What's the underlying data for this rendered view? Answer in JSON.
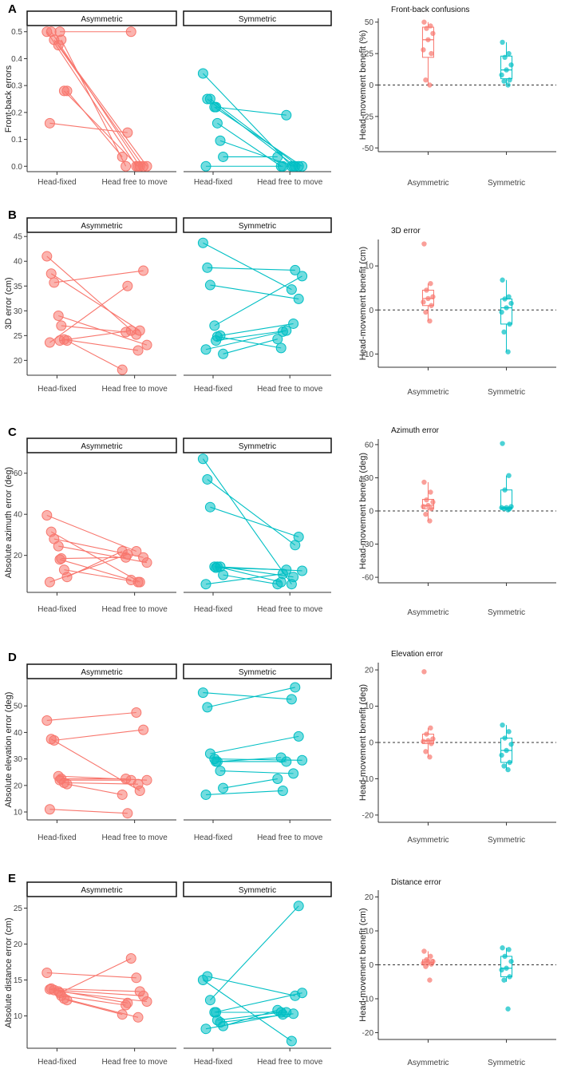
{
  "figure": {
    "colors": {
      "asym": "#F8766D",
      "sym": "#00BFC4"
    },
    "facets": [
      "Asymmetric",
      "Symmetric"
    ],
    "conditions": [
      "Head-fixed",
      "Head free to move"
    ]
  },
  "chart_data": [
    {
      "type": "line",
      "panel": "A",
      "ylabel": "Front-back errors",
      "ylim": [
        -0.02,
        0.52
      ],
      "yticks": [
        "0.0",
        "0.1",
        "0.2",
        "0.3",
        "0.4",
        "0.5"
      ],
      "yticks_values": [
        0,
        0.1,
        0.2,
        0.3,
        0.4,
        0.5
      ],
      "series": [
        {
          "name": "Asymmetric",
          "pairs": [
            [
              0.5,
              0.0
            ],
            [
              0.5,
              0.0
            ],
            [
              0.47,
              0.0
            ],
            [
              0.45,
              0.0
            ],
            [
              0.47,
              0.0
            ],
            [
              0.28,
              0.0
            ],
            [
              0.28,
              0.035
            ],
            [
              0.16,
              0.125
            ],
            [
              0.5,
              0.5
            ]
          ]
        },
        {
          "name": "Symmetric",
          "pairs": [
            [
              0.345,
              0.0
            ],
            [
              0.25,
              0.0
            ],
            [
              0.25,
              0.0
            ],
            [
              0.22,
              0.0
            ],
            [
              0.16,
              0.0
            ],
            [
              0.095,
              0.0
            ],
            [
              0.035,
              0.035
            ],
            [
              0.0,
              0.0
            ],
            [
              0.22,
              0.19
            ]
          ]
        }
      ]
    },
    {
      "type": "box",
      "panel": "A",
      "title": "Front-back confusions",
      "ylabel": "Head-movement benefit (%)",
      "ylim": [
        -53,
        53
      ],
      "yticks": [
        "-50",
        "-25",
        "0",
        "25",
        "50"
      ],
      "yticks_values": [
        -50,
        -25,
        0,
        25,
        50
      ],
      "categories": [
        "Asymmetric",
        "Symmetric"
      ],
      "boxes": [
        {
          "q1": 22,
          "median": 36,
          "q3": 46,
          "whisker_low": 0,
          "whisker_high": 50,
          "points": [
            50,
            47,
            45,
            41,
            36,
            28,
            25,
            4,
            0
          ]
        },
        {
          "q1": 5,
          "median": 12,
          "q3": 23,
          "whisker_low": 0,
          "whisker_high": 34,
          "points": [
            34,
            25,
            22,
            16,
            12,
            8,
            4,
            3,
            0
          ]
        }
      ]
    },
    {
      "type": "line",
      "panel": "B",
      "ylabel": "3D error (cm)",
      "ylim": [
        17,
        46
      ],
      "yticks": [
        "20",
        "25",
        "30",
        "35",
        "40",
        "45"
      ],
      "yticks_values": [
        20,
        25,
        30,
        35,
        40,
        45
      ],
      "series": [
        {
          "name": "Asymmetric",
          "pairs": [
            [
              41,
              25.2
            ],
            [
              37.5,
              26
            ],
            [
              35.7,
              38.1
            ],
            [
              29,
              23.1
            ],
            [
              27,
              25.7
            ],
            [
              24.2,
              22
            ],
            [
              24,
              18.1
            ],
            [
              23.6,
              35
            ],
            [
              24,
              26
            ]
          ]
        },
        {
          "name": "Symmetric",
          "pairs": [
            [
              43.7,
              34.3
            ],
            [
              38.7,
              38.2
            ],
            [
              35.2,
              32.4
            ],
            [
              27,
              37
            ],
            [
              24.8,
              22.5
            ],
            [
              25,
              27.4
            ],
            [
              21.3,
              24.3
            ],
            [
              22.2,
              25.8
            ],
            [
              24,
              26
            ]
          ]
        }
      ]
    },
    {
      "type": "box",
      "panel": "B",
      "title": "3D error",
      "ylabel": "Head-movement benefit (cm)",
      "ylim": [
        -13,
        16
      ],
      "yticks": [
        "-10",
        "0",
        "10"
      ],
      "yticks_values": [
        -10,
        0,
        10
      ],
      "categories": [
        "Asymmetric",
        "Symmetric"
      ],
      "boxes": [
        {
          "q1": 1,
          "median": 2.6,
          "q3": 4.5,
          "whisker_low": -2.5,
          "whisker_high": 6,
          "points": [
            15,
            6,
            4.5,
            3,
            2.6,
            1.8,
            1,
            -0.5,
            -2.5
          ]
        },
        {
          "q1": -3.2,
          "median": 0.5,
          "q3": 2.5,
          "whisker_low": -9.5,
          "whisker_high": 6.8,
          "points": [
            6.8,
            3,
            2.5,
            1.5,
            0.5,
            -0.5,
            -3.2,
            -5,
            -9.5
          ]
        }
      ]
    },
    {
      "type": "line",
      "panel": "C",
      "ylabel": "Absolute azimuth error (deg)",
      "ylim": [
        2,
        70
      ],
      "yticks": [
        "20",
        "40",
        "60"
      ],
      "yticks_values": [
        20,
        40,
        60
      ],
      "series": [
        {
          "name": "Asymmetric",
          "pairs": [
            [
              39.5,
              22
            ],
            [
              31.5,
              7
            ],
            [
              28,
              19
            ],
            [
              24.5,
              16.5
            ],
            [
              18.5,
              19
            ],
            [
              13,
              7
            ],
            [
              9.5,
              22
            ],
            [
              7,
              20.5
            ],
            [
              18,
              8
            ]
          ]
        },
        {
          "name": "Symmetric",
          "pairs": [
            [
              67,
              6
            ],
            [
              57,
              25
            ],
            [
              43.5,
              29
            ],
            [
              14.5,
              12.5
            ],
            [
              14.5,
              7
            ],
            [
              14.5,
              9.5
            ],
            [
              10.5,
              6
            ],
            [
              6,
              11
            ],
            [
              14,
              13
            ]
          ]
        }
      ]
    },
    {
      "type": "box",
      "panel": "C",
      "title": "Azimuth error",
      "ylabel": "Head-movement benefit (deg)",
      "ylim": [
        -65,
        65
      ],
      "yticks": [
        "-60",
        "-30",
        "0",
        "30",
        "60"
      ],
      "yticks_values": [
        -60,
        -30,
        0,
        30,
        60
      ],
      "categories": [
        "Asymmetric",
        "Symmetric"
      ],
      "boxes": [
        {
          "q1": 2,
          "median": 5,
          "q3": 10.5,
          "whisker_low": -9,
          "whisker_high": 26,
          "points": [
            26,
            17,
            10,
            8,
            5,
            4,
            2,
            -3,
            -9
          ]
        },
        {
          "q1": 2,
          "median": 3,
          "q3": 19,
          "whisker_low": 1,
          "whisker_high": 32,
          "points": [
            61,
            32,
            19,
            4,
            3,
            3,
            2,
            2,
            1
          ]
        }
      ]
    },
    {
      "type": "line",
      "panel": "D",
      "ylabel": "Absolute elevation error (deg)",
      "ylim": [
        7,
        60
      ],
      "yticks": [
        "10",
        "20",
        "30",
        "40",
        "50"
      ],
      "yticks_values": [
        10,
        20,
        30,
        40,
        50
      ],
      "series": [
        {
          "name": "Asymmetric",
          "pairs": [
            [
              44.5,
              47.5
            ],
            [
              37.5,
              18
            ],
            [
              37,
              41
            ],
            [
              23.5,
              22
            ],
            [
              22.5,
              22.5
            ],
            [
              21,
              20.5
            ],
            [
              20.5,
              16.5
            ],
            [
              11,
              9.5
            ],
            [
              22,
              22
            ]
          ]
        },
        {
          "name": "Symmetric",
          "pairs": [
            [
              55,
              52.5
            ],
            [
              49.5,
              57
            ],
            [
              32,
              38.5
            ],
            [
              30,
              29.5
            ],
            [
              29,
              30.5
            ],
            [
              25.5,
              24.5
            ],
            [
              19,
              22.5
            ],
            [
              16.5,
              18
            ],
            [
              29,
              29
            ]
          ]
        }
      ]
    },
    {
      "type": "box",
      "panel": "D",
      "title": "Elevation error",
      "ylabel": "Head-movement benefit (deg)",
      "ylim": [
        -22,
        22
      ],
      "yticks": [
        "-20",
        "-10",
        "0",
        "10",
        "20"
      ],
      "yticks_values": [
        -20,
        -10,
        0,
        10,
        20
      ],
      "categories": [
        "Asymmetric",
        "Symmetric"
      ],
      "boxes": [
        {
          "q1": -0.3,
          "median": 0.5,
          "q3": 2.3,
          "whisker_low": -4,
          "whisker_high": 4,
          "points": [
            19.5,
            4,
            2.3,
            1,
            0.5,
            0.3,
            -0.3,
            -2.5,
            -4
          ]
        },
        {
          "q1": -5.5,
          "median": -2.2,
          "q3": 1.2,
          "whisker_low": -7.5,
          "whisker_high": 4.8,
          "points": [
            4.8,
            3,
            1.2,
            -0.5,
            -2.2,
            -3.5,
            -5.5,
            -6.5,
            -7.5
          ]
        }
      ]
    },
    {
      "type": "line",
      "panel": "E",
      "ylabel": "Absolute distance error (cm)",
      "ylim": [
        5.5,
        26.5
      ],
      "yticks": [
        "10",
        "15",
        "20",
        "25"
      ],
      "yticks_values": [
        10,
        15,
        20,
        25
      ],
      "series": [
        {
          "name": "Asymmetric",
          "pairs": [
            [
              16,
              15.3
            ],
            [
              13.8,
              13.4
            ],
            [
              13.6,
              12.8
            ],
            [
              13.4,
              12
            ],
            [
              12.8,
              11.5
            ],
            [
              12.4,
              9.8
            ],
            [
              12.2,
              10.2
            ],
            [
              13.7,
              11.8
            ],
            [
              13.2,
              18
            ]
          ]
        },
        {
          "name": "Symmetric",
          "pairs": [
            [
              15,
              6.5
            ],
            [
              15.5,
              12.8
            ],
            [
              12.2,
              25.3
            ],
            [
              10.5,
              13.2
            ],
            [
              9.4,
              10.5
            ],
            [
              9.1,
              10.3
            ],
            [
              8.6,
              10.8
            ],
            [
              8.2,
              10.2
            ],
            [
              10.5,
              10.5
            ]
          ]
        }
      ]
    },
    {
      "type": "box",
      "panel": "E",
      "title": "Distance error",
      "ylabel": "Head-movement benefit (cm)",
      "ylim": [
        -22,
        22
      ],
      "yticks": [
        "-20",
        "-10",
        "0",
        "10",
        "20"
      ],
      "yticks_values": [
        -20,
        -10,
        0,
        10,
        20
      ],
      "categories": [
        "Asymmetric",
        "Symmetric"
      ],
      "boxes": [
        {
          "q1": 0.2,
          "median": 0.8,
          "q3": 1.5,
          "whisker_low": -0.5,
          "whisker_high": 4,
          "points": [
            4,
            2.5,
            1.5,
            1,
            0.8,
            0.5,
            0.2,
            -0.5,
            -4.5
          ]
        },
        {
          "q1": -3.5,
          "median": -1,
          "q3": 2.5,
          "whisker_low": -5,
          "whisker_high": 5,
          "points": [
            5,
            4.5,
            2.5,
            1,
            -1,
            -1.5,
            -3.5,
            -4.5,
            -13
          ]
        }
      ]
    }
  ]
}
